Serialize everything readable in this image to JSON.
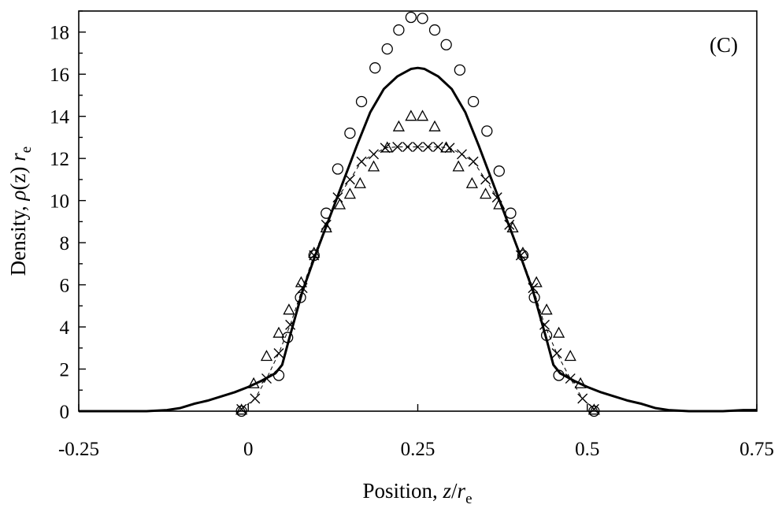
{
  "chart_data": {
    "type": "scatter",
    "panel_label": "(C)",
    "xlabel": {
      "prefix": "Position, ",
      "var": "z",
      "sep": "/",
      "unit": "r",
      "sub": "e"
    },
    "ylabel": {
      "prefix": "Density, ",
      "var": "ρ",
      "arg": "(z)",
      "unit": "r",
      "sub": "e"
    },
    "xlim": [
      -0.25,
      0.75
    ],
    "ylim": [
      0,
      19
    ],
    "xticks": [
      -0.25,
      0,
      0.25,
      0.5,
      0.75
    ],
    "xtick_labels": [
      "-0.25",
      "0",
      "0.25",
      "0.5",
      "0.75"
    ],
    "yticks": [
      0,
      2,
      4,
      6,
      8,
      10,
      12,
      14,
      16,
      18
    ],
    "ytick_labels": [
      "0",
      "2",
      "4",
      "6",
      "8",
      "10",
      "12",
      "14",
      "16",
      "18"
    ],
    "grid": false,
    "series": [
      {
        "marker": "line",
        "style": "solid",
        "x": [
          -0.25,
          -0.15,
          -0.12,
          -0.1,
          -0.08,
          -0.06,
          -0.04,
          -0.02,
          0.0,
          0.02,
          0.04,
          0.05,
          0.06,
          0.08,
          0.1,
          0.12,
          0.14,
          0.16,
          0.18,
          0.2,
          0.22,
          0.24,
          0.25,
          0.26,
          0.28,
          0.3,
          0.32,
          0.34,
          0.36,
          0.38,
          0.4,
          0.42,
          0.44,
          0.45,
          0.46,
          0.48,
          0.5,
          0.52,
          0.54,
          0.56,
          0.58,
          0.6,
          0.62,
          0.65,
          0.7,
          0.73,
          0.75
        ],
        "y": [
          0.0,
          0.0,
          0.05,
          0.15,
          0.35,
          0.5,
          0.7,
          0.9,
          1.15,
          1.45,
          1.8,
          2.2,
          3.4,
          5.7,
          7.5,
          9.2,
          10.9,
          12.6,
          14.2,
          15.3,
          15.9,
          16.25,
          16.3,
          16.25,
          15.9,
          15.3,
          14.2,
          12.6,
          10.9,
          9.2,
          7.5,
          5.7,
          3.4,
          2.2,
          1.8,
          1.45,
          1.15,
          0.9,
          0.7,
          0.5,
          0.35,
          0.15,
          0.05,
          0.0,
          0.0,
          0.05,
          0.05
        ]
      },
      {
        "marker": "circle",
        "x": [
          -0.01,
          0.045,
          0.058,
          0.077,
          0.097,
          0.115,
          0.132,
          0.15,
          0.167,
          0.187,
          0.205,
          0.222,
          0.24,
          0.257,
          0.275,
          0.292,
          0.312,
          0.332,
          0.352,
          0.37,
          0.387,
          0.405,
          0.422,
          0.44,
          0.458,
          0.51
        ],
        "y": [
          0.0,
          1.7,
          3.5,
          5.4,
          7.4,
          9.4,
          11.5,
          13.2,
          14.7,
          16.3,
          17.2,
          18.1,
          18.7,
          18.65,
          18.1,
          17.4,
          16.2,
          14.7,
          13.3,
          11.4,
          9.4,
          7.4,
          5.4,
          3.6,
          1.7,
          0.0
        ]
      },
      {
        "marker": "triangle",
        "x": [
          -0.01,
          0.008,
          0.027,
          0.045,
          0.06,
          0.078,
          0.097,
          0.115,
          0.135,
          0.15,
          0.165,
          0.185,
          0.205,
          0.222,
          0.24,
          0.257,
          0.275,
          0.292,
          0.31,
          0.33,
          0.35,
          0.37,
          0.39,
          0.405,
          0.425,
          0.44,
          0.458,
          0.475,
          0.49,
          0.51
        ],
        "y": [
          0.05,
          1.3,
          2.6,
          3.7,
          4.8,
          6.1,
          7.5,
          8.7,
          9.8,
          10.3,
          10.8,
          11.6,
          12.5,
          13.5,
          14.0,
          14.0,
          13.5,
          12.5,
          11.6,
          10.8,
          10.3,
          9.8,
          8.7,
          7.5,
          6.1,
          4.8,
          3.7,
          2.6,
          1.3,
          0.05
        ]
      },
      {
        "marker": "x",
        "style": "dashed",
        "x": [
          -0.01,
          0.01,
          0.027,
          0.045,
          0.062,
          0.08,
          0.097,
          0.115,
          0.132,
          0.15,
          0.167,
          0.185,
          0.202,
          0.22,
          0.235,
          0.25,
          0.265,
          0.28,
          0.297,
          0.315,
          0.332,
          0.35,
          0.367,
          0.385,
          0.402,
          0.42,
          0.437,
          0.455,
          0.475,
          0.493,
          0.51
        ],
        "y": [
          0.1,
          0.6,
          1.55,
          2.75,
          4.1,
          5.85,
          7.4,
          8.85,
          10.15,
          11.0,
          11.85,
          12.2,
          12.5,
          12.55,
          12.55,
          12.55,
          12.55,
          12.55,
          12.5,
          12.2,
          11.85,
          11.0,
          10.15,
          8.85,
          7.4,
          5.85,
          4.1,
          2.75,
          1.55,
          0.6,
          0.1
        ]
      }
    ]
  }
}
